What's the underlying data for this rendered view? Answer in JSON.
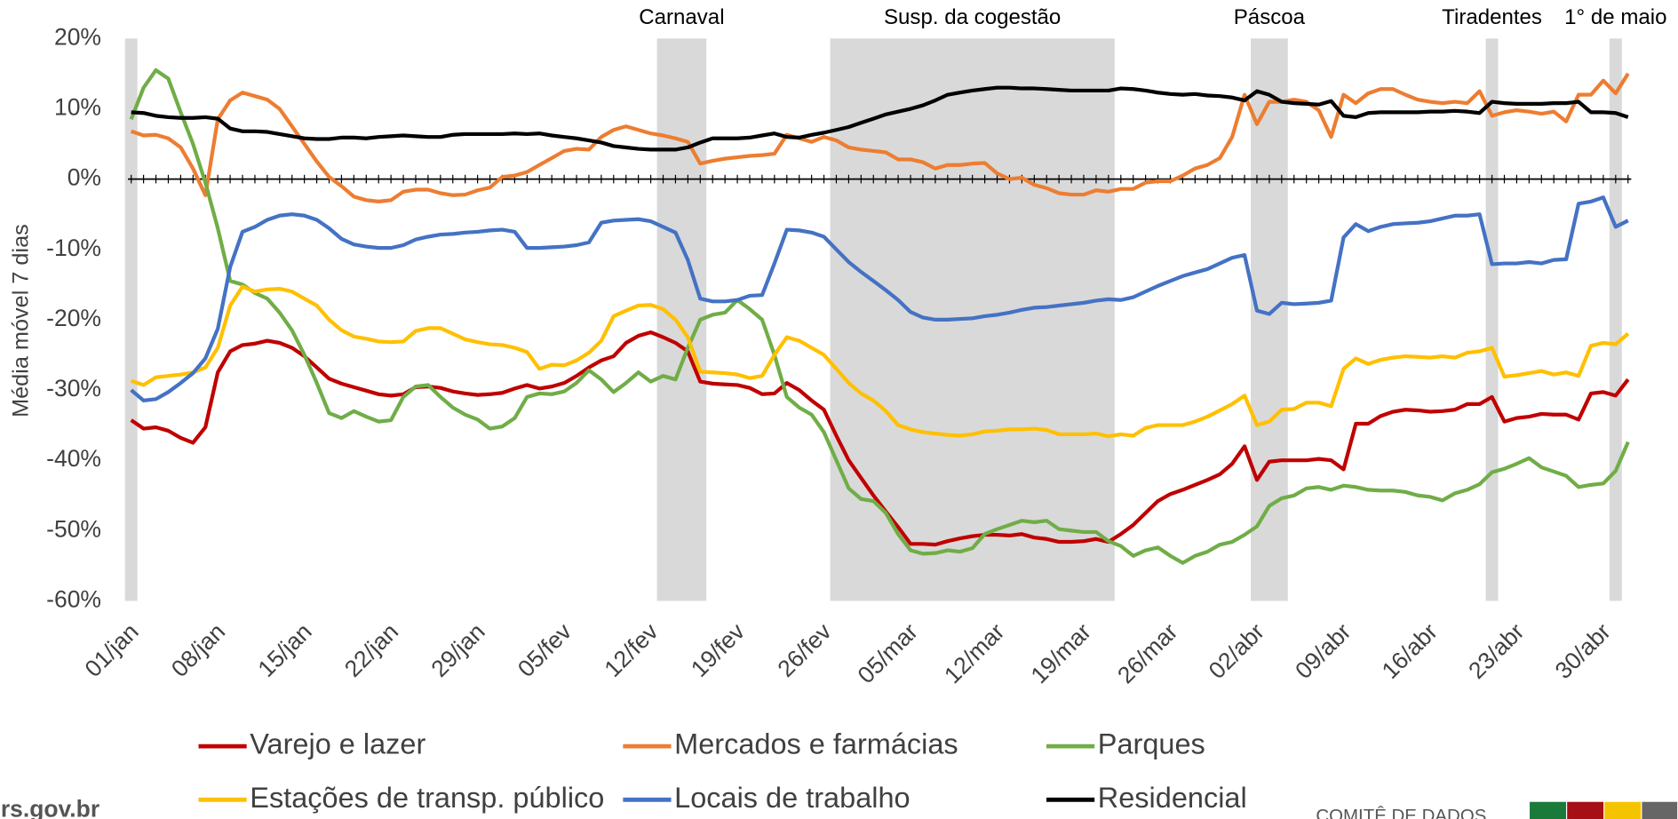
{
  "chart_data": {
    "type": "line",
    "y_label": "Média móvel 7 dias",
    "categories": [
      "01/jan",
      null,
      null,
      null,
      null,
      null,
      null,
      "08/jan",
      null,
      null,
      null,
      null,
      null,
      null,
      "15/jan",
      null,
      null,
      null,
      null,
      null,
      null,
      "22/jan",
      null,
      null,
      null,
      null,
      null,
      null,
      "29/jan",
      null,
      null,
      null,
      null,
      null,
      null,
      "05/fev",
      null,
      null,
      null,
      null,
      null,
      null,
      "12/fev",
      null,
      null,
      null,
      null,
      null,
      null,
      "19/fev",
      null,
      null,
      null,
      null,
      null,
      null,
      "26/fev",
      null,
      null,
      null,
      null,
      null,
      null,
      "05/mar",
      null,
      null,
      null,
      null,
      null,
      null,
      "12/mar",
      null,
      null,
      null,
      null,
      null,
      null,
      "19/mar",
      null,
      null,
      null,
      null,
      null,
      null,
      "26/mar",
      null,
      null,
      null,
      null,
      null,
      null,
      "02/abr",
      null,
      null,
      null,
      null,
      null,
      null,
      "09/abr",
      null,
      null,
      null,
      null,
      null,
      null,
      "16/abr",
      null,
      null,
      null,
      null,
      null,
      null,
      "23/abr",
      null,
      null,
      null,
      null,
      null,
      null,
      "30/abr",
      null,
      null
    ],
    "ylim": [
      -60,
      20
    ],
    "yticks": [
      {
        "value": 20,
        "label": "20%"
      },
      {
        "value": 10,
        "label": "10%"
      },
      {
        "value": 0,
        "label": "0%"
      },
      {
        "value": -10,
        "label": "-10%"
      },
      {
        "value": -20,
        "label": "-20%"
      },
      {
        "value": -30,
        "label": "-30%"
      },
      {
        "value": -40,
        "label": "-40%"
      },
      {
        "value": -50,
        "label": "-50%"
      },
      {
        "value": -60,
        "label": "-60%"
      }
    ],
    "grid": false,
    "shaded_periods": [
      {
        "start": 0,
        "end": 0
      },
      {
        "label": "Carnaval",
        "start": 43,
        "end": 46
      },
      {
        "label": "Susp. da cogestão",
        "start": 57,
        "end": 79
      },
      {
        "label": "Páscoa",
        "start": 91,
        "end": 93
      },
      {
        "label": "Tiradentes",
        "start": 110,
        "end": 110
      },
      {
        "label": "1° de maio",
        "start": 120,
        "end": 120
      }
    ],
    "series": [
      {
        "name": "Varejo e lazer",
        "color": "#c00000",
        "values": [
          -34.3,
          -35.5,
          -35.3,
          -35.8,
          -36.8,
          -37.5,
          -35.3,
          -27.5,
          -24.5,
          -23.6,
          -23.4,
          -23,
          -23.3,
          -24,
          -25.2,
          -26.8,
          -28.4,
          -29.1,
          -29.6,
          -30.1,
          -30.6,
          -30.8,
          -30.6,
          -29.6,
          -29.5,
          -29.7,
          -30.2,
          -30.5,
          -30.7,
          -30.6,
          -30.4,
          -29.8,
          -29.3,
          -29.8,
          -29.5,
          -29,
          -28,
          -26.8,
          -25.8,
          -25.2,
          -23.3,
          -22.3,
          -21.8,
          -22.5,
          -23.3,
          -24.5,
          -28.8,
          -29.1,
          -29.2,
          -29.3,
          -29.7,
          -30.6,
          -30.5,
          -29,
          -30,
          -31.5,
          -32.8,
          -36.5,
          -40,
          -42.5,
          -45,
          -47.3,
          -49.5,
          -51.9,
          -51.9,
          -52,
          -51.5,
          -51.1,
          -50.8,
          -50.6,
          -50.6,
          -50.7,
          -50.5,
          -51,
          -51.2,
          -51.6,
          -51.6,
          -51.5,
          -51.2,
          -51.6,
          -50.5,
          -49.2,
          -47.5,
          -45.8,
          -44.8,
          -44.2,
          -43.5,
          -42.8,
          -42,
          -40.5,
          -38,
          -42.8,
          -40.2,
          -40,
          -40,
          -40,
          -39.8,
          -40,
          -41.3,
          -34.8,
          -34.8,
          -33.7,
          -33.1,
          -32.8,
          -32.9,
          -33.1,
          -33,
          -32.8,
          -32,
          -32,
          -31,
          -34.5,
          -34,
          -33.8,
          -33.4,
          -33.5,
          -33.5,
          -34.2,
          -30.5,
          -30.3,
          -30.8,
          -28.5
        ]
      },
      {
        "name": "Mercados e farmácias",
        "color": "#ed7d31",
        "values": [
          6.8,
          6.2,
          6.3,
          5.8,
          4.5,
          1.5,
          -2.3,
          8.5,
          11.2,
          12.3,
          11.8,
          11.3,
          10,
          7.5,
          5,
          2.5,
          0.3,
          -1,
          -2.5,
          -3,
          -3.2,
          -3,
          -1.8,
          -1.5,
          -1.5,
          -2,
          -2.3,
          -2.2,
          -1.6,
          -1.2,
          0.3,
          0.5,
          1,
          2,
          3,
          4,
          4.3,
          4.2,
          6,
          7,
          7.5,
          7,
          6.5,
          6.2,
          5.8,
          5.3,
          2.2,
          2.6,
          2.9,
          3.1,
          3.3,
          3.4,
          3.6,
          6.3,
          5.8,
          5.3,
          6,
          5.5,
          4.5,
          4.2,
          4,
          3.8,
          2.8,
          2.8,
          2.4,
          1.5,
          2,
          2,
          2.2,
          2.3,
          0.8,
          0,
          0.2,
          -0.8,
          -1.3,
          -2,
          -2.2,
          -2.2,
          -1.6,
          -1.8,
          -1.4,
          -1.4,
          -0.5,
          -0.3,
          -0.3,
          0.5,
          1.5,
          2,
          3,
          6,
          12,
          7.8,
          11,
          11,
          11.3,
          11,
          9.8,
          6,
          12,
          10.8,
          12.2,
          12.8,
          12.8,
          12,
          11.3,
          11,
          10.8,
          11,
          10.8,
          12.5,
          9,
          9.5,
          9.8,
          9.6,
          9.3,
          9.6,
          8.2,
          12,
          12,
          14,
          12.2,
          15
        ]
      },
      {
        "name": "Parques",
        "color": "#70ad47",
        "values": [
          8.5,
          13,
          15.5,
          14.3,
          9.5,
          5,
          -0.5,
          -7,
          -14.5,
          -15,
          -16.2,
          -17,
          -19,
          -21.5,
          -25,
          -29,
          -33.3,
          -34,
          -33,
          -33.8,
          -34.5,
          -34.3,
          -31,
          -29.5,
          -29.3,
          -31,
          -32.5,
          -33.5,
          -34.2,
          -35.5,
          -35.2,
          -34,
          -31,
          -30.5,
          -30.6,
          -30.2,
          -29,
          -27.2,
          -28.5,
          -30.3,
          -29,
          -27.5,
          -28.8,
          -28,
          -28.5,
          -24,
          -20,
          -19.3,
          -19,
          -17.2,
          -18.5,
          -20,
          -25,
          -31,
          -32.5,
          -33.5,
          -36,
          -40,
          -44,
          -45.5,
          -45.8,
          -47.5,
          -50.5,
          -52.8,
          -53.3,
          -53.2,
          -52.8,
          -53,
          -52.5,
          -50.5,
          -49.8,
          -49.2,
          -48.6,
          -48.8,
          -48.6,
          -49.8,
          -50,
          -50.2,
          -50.2,
          -51.5,
          -52.2,
          -53.6,
          -52.8,
          -52.4,
          -53.6,
          -54.6,
          -53.6,
          -53,
          -52,
          -51.6,
          -50.6,
          -49.4,
          -46.5,
          -45.4,
          -45,
          -44,
          -43.8,
          -44.2,
          -43.6,
          -43.8,
          -44.2,
          -44.3,
          -44.3,
          -44.5,
          -45,
          -45.2,
          -45.7,
          -44.7,
          -44.2,
          -43.4,
          -41.7,
          -41.2,
          -40.5,
          -39.7,
          -41,
          -41.6,
          -42.2,
          -43.8,
          -43.5,
          -43.3,
          -41.5,
          -37.4
        ]
      },
      {
        "name": "Estações de transp. público",
        "color": "#ffc000",
        "values": [
          -28.7,
          -29.3,
          -28.2,
          -28,
          -27.8,
          -27.5,
          -26.8,
          -24,
          -18,
          -15.3,
          -16,
          -15.7,
          -15.6,
          -16,
          -17,
          -18,
          -20,
          -21.5,
          -22.4,
          -22.7,
          -23.1,
          -23.2,
          -23.1,
          -21.6,
          -21.2,
          -21.2,
          -22,
          -22.8,
          -23.2,
          -23.5,
          -23.6,
          -24,
          -24.6,
          -27,
          -26.4,
          -26.5,
          -25.8,
          -24.7,
          -23,
          -19.5,
          -18.7,
          -18,
          -17.9,
          -18.5,
          -20,
          -22.5,
          -27.4,
          -27.5,
          -27.6,
          -27.8,
          -28.3,
          -28,
          -25,
          -22.5,
          -23,
          -24,
          -25,
          -27,
          -29,
          -30.5,
          -31.5,
          -33,
          -35,
          -35.6,
          -36,
          -36.2,
          -36.4,
          -36.5,
          -36.3,
          -35.9,
          -35.8,
          -35.6,
          -35.6,
          -35.5,
          -35.7,
          -36.3,
          -36.3,
          -36.3,
          -36.2,
          -36.6,
          -36.3,
          -36.5,
          -35.4,
          -35,
          -35,
          -35,
          -34.5,
          -33.8,
          -32.9,
          -32,
          -30.8,
          -35,
          -34.5,
          -32.8,
          -32.7,
          -31.8,
          -31.8,
          -32.3,
          -27,
          -25.5,
          -26.3,
          -25.7,
          -25.4,
          -25.2,
          -25.3,
          -25.4,
          -25.2,
          -25.4,
          -24.7,
          -24.5,
          -24,
          -28.1,
          -27.9,
          -27.6,
          -27.3,
          -27.8,
          -27.5,
          -28,
          -23.7,
          -23.3,
          -23.5,
          -22
        ]
      },
      {
        "name": "Locais de trabalho",
        "color": "#4472c4",
        "values": [
          -30,
          -31.5,
          -31.3,
          -30.3,
          -29,
          -27.6,
          -25.5,
          -21.3,
          -12.5,
          -7.5,
          -6.8,
          -5.8,
          -5.2,
          -5,
          -5.2,
          -5.8,
          -7,
          -8.5,
          -9.3,
          -9.6,
          -9.8,
          -9.8,
          -9.4,
          -8.6,
          -8.2,
          -7.9,
          -7.8,
          -7.6,
          -7.5,
          -7.3,
          -7.2,
          -7.5,
          -9.8,
          -9.8,
          -9.7,
          -9.6,
          -9.4,
          -9,
          -6.2,
          -5.9,
          -5.8,
          -5.7,
          -6,
          -6.8,
          -7.6,
          -11.5,
          -17,
          -17.4,
          -17.4,
          -17.2,
          -16.6,
          -16.5,
          -12,
          -7.2,
          -7.3,
          -7.6,
          -8.2,
          -10,
          -11.8,
          -13.2,
          -14.5,
          -15.8,
          -17.2,
          -18.9,
          -19.7,
          -20,
          -20,
          -19.9,
          -19.8,
          -19.5,
          -19.3,
          -19,
          -18.6,
          -18.3,
          -18.2,
          -18,
          -17.8,
          -17.6,
          -17.3,
          -17.1,
          -17.2,
          -16.8,
          -16,
          -15.2,
          -14.5,
          -13.8,
          -13.3,
          -12.8,
          -12,
          -11.2,
          -10.8,
          -18.7,
          -19.2,
          -17.6,
          -17.8,
          -17.7,
          -17.6,
          -17.3,
          -8.3,
          -6.4,
          -7.4,
          -6.8,
          -6.4,
          -6.3,
          -6.2,
          -6,
          -5.6,
          -5.2,
          -5.2,
          -5,
          -12.1,
          -12,
          -12,
          -11.8,
          -12,
          -11.5,
          -11.4,
          -3.5,
          -3.2,
          -2.6,
          -6.8,
          -5.9
        ]
      },
      {
        "name": "Residencial",
        "color": "#000000",
        "values": [
          9.5,
          9.4,
          9,
          8.8,
          8.7,
          8.7,
          8.8,
          8.6,
          7.2,
          6.8,
          6.8,
          6.7,
          6.4,
          6.1,
          5.8,
          5.7,
          5.7,
          5.9,
          5.9,
          5.8,
          6,
          6.1,
          6.2,
          6.1,
          6,
          6,
          6.3,
          6.4,
          6.4,
          6.4,
          6.4,
          6.5,
          6.4,
          6.5,
          6.2,
          6,
          5.8,
          5.5,
          5.2,
          4.7,
          4.5,
          4.3,
          4.2,
          4.2,
          4.2,
          4.5,
          5.2,
          5.8,
          5.8,
          5.8,
          5.9,
          6.2,
          6.5,
          6,
          5.9,
          6.3,
          6.6,
          7,
          7.4,
          8,
          8.6,
          9.2,
          9.6,
          10,
          10.5,
          11.2,
          12,
          12.3,
          12.6,
          12.8,
          13,
          13,
          12.9,
          12.9,
          12.8,
          12.7,
          12.6,
          12.6,
          12.6,
          12.6,
          12.9,
          12.8,
          12.6,
          12.3,
          12.1,
          12,
          12.1,
          11.9,
          11.8,
          11.6,
          11.2,
          12.5,
          12,
          11,
          10.8,
          10.7,
          10.6,
          11.1,
          9,
          8.8,
          9.4,
          9.5,
          9.5,
          9.5,
          9.5,
          9.6,
          9.6,
          9.7,
          9.6,
          9.4,
          11,
          10.8,
          10.7,
          10.7,
          10.7,
          10.8,
          10.8,
          11,
          9.5,
          9.5,
          9.4,
          8.8
        ]
      }
    ]
  },
  "footer": {
    "site": "rs.gov.br",
    "org": "COMITÊ DE DADOS"
  }
}
